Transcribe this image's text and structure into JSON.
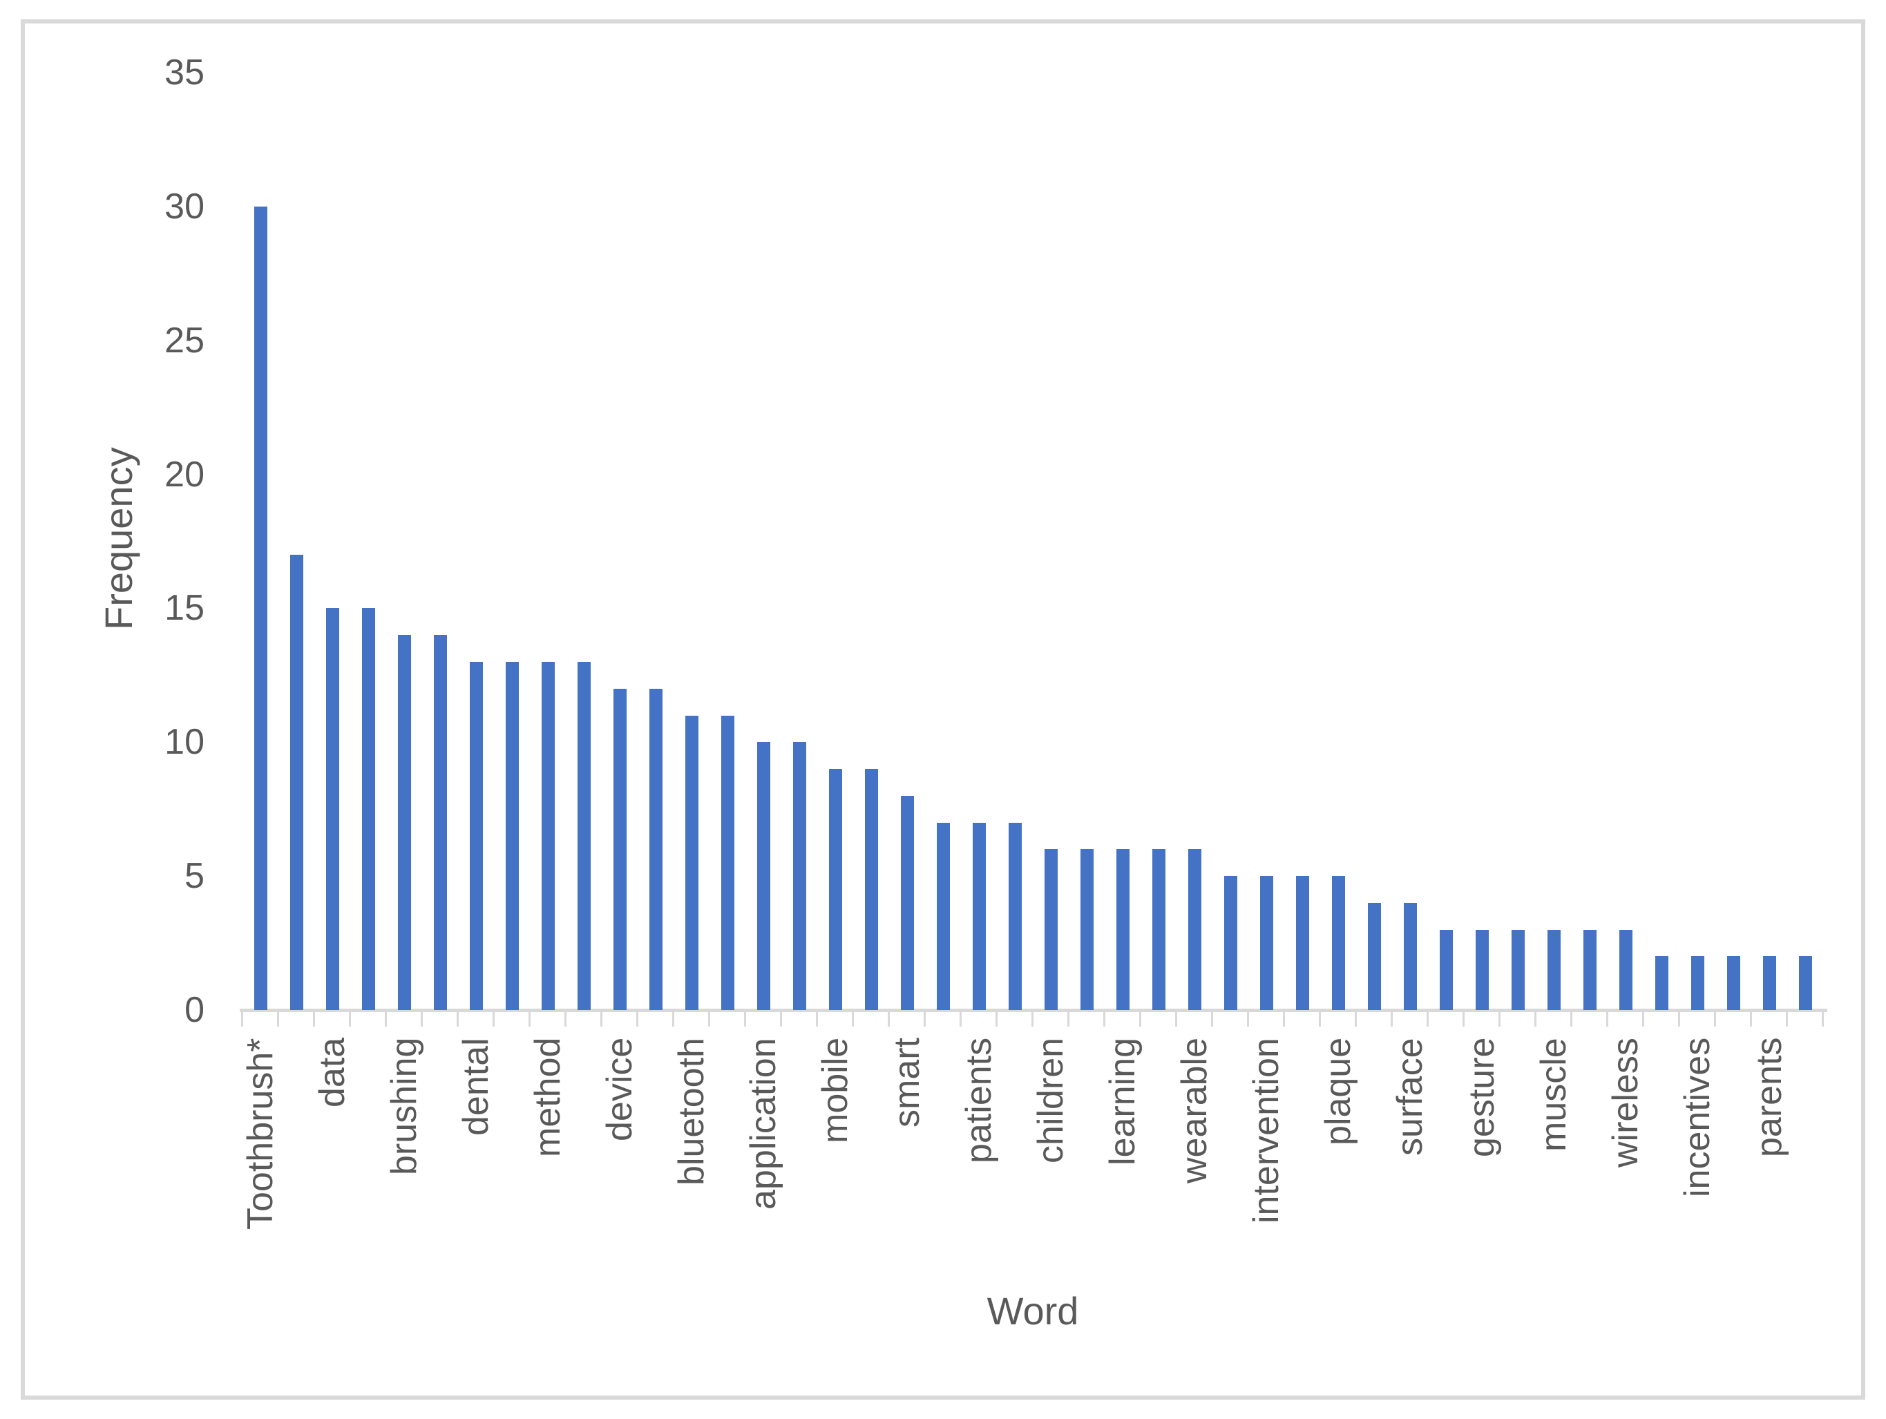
{
  "chart_data": {
    "type": "bar",
    "title": "",
    "xlabel": "Word",
    "ylabel": "Frequency",
    "ylim": [
      0,
      35
    ],
    "yticks": [
      0,
      5,
      10,
      15,
      20,
      25,
      30,
      35
    ],
    "grid": false,
    "legend": false,
    "bar_color": "#4472C4",
    "axis_color": "#D9D9D9",
    "text_color": "#595959",
    "figure_border_color": "#D9D9D9",
    "note": "44 bars; only every second category is labeled on the axis",
    "categories": [
      "Toothbrush*",
      "",
      "data",
      "",
      "brushing",
      "",
      "dental",
      "",
      "method",
      "",
      "device",
      "",
      "bluetooth",
      "",
      "application",
      "",
      "mobile",
      "",
      "smart",
      "",
      "patients",
      "",
      "children",
      "",
      "learning",
      "",
      "wearable",
      "",
      "intervention",
      "",
      "plaque",
      "",
      "surface",
      "",
      "gesture",
      "",
      "muscle",
      "",
      "wireless",
      "",
      "incentives",
      "",
      "parents",
      ""
    ],
    "values": [
      30,
      17,
      15,
      15,
      14,
      14,
      13,
      13,
      13,
      13,
      12,
      12,
      11,
      11,
      10,
      10,
      9,
      9,
      8,
      7,
      7,
      7,
      6,
      6,
      6,
      6,
      6,
      5,
      5,
      5,
      5,
      4,
      4,
      3,
      3,
      3,
      3,
      3,
      3,
      2,
      2,
      2,
      2,
      2
    ]
  }
}
